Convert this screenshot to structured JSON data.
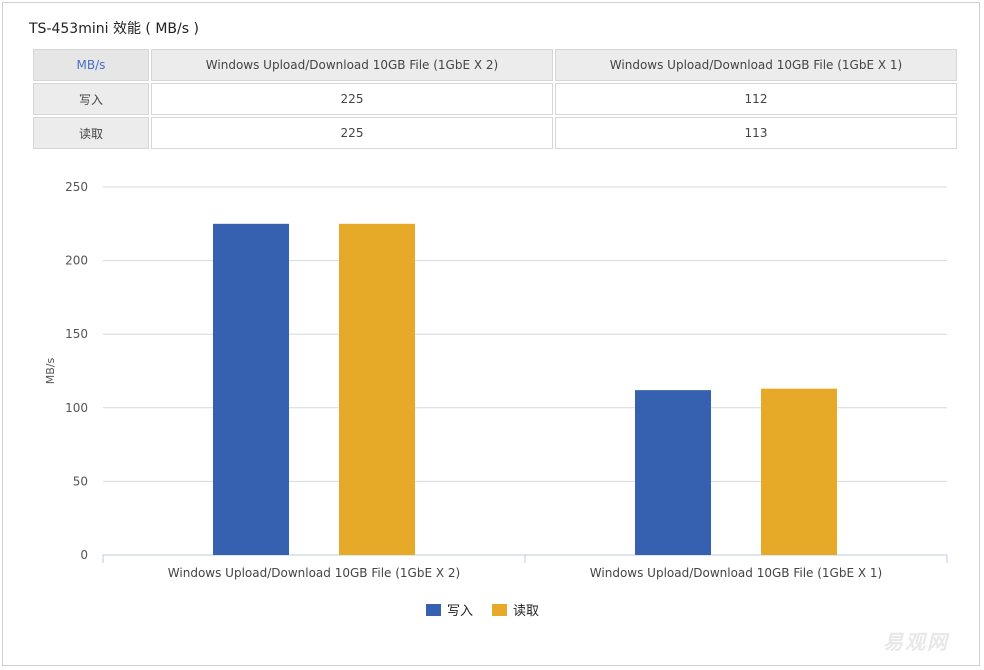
{
  "title": "TS-453mini 效能 ( MB/s )",
  "table": {
    "corner": "MB/s",
    "columns": [
      "Windows Upload/Download 10GB File (1GbE X 2)",
      "Windows Upload/Download 10GB File (1GbE X 1)"
    ],
    "rows": [
      {
        "label": "写入",
        "values": [
          "225",
          "112"
        ]
      },
      {
        "label": "读取",
        "values": [
          "225",
          "113"
        ]
      }
    ]
  },
  "watermark": "易观网",
  "chart_data": {
    "type": "bar",
    "categories": [
      "Windows Upload/Download 10GB File (1GbE X 2)",
      "Windows Upload/Download 10GB File (1GbE X 1)"
    ],
    "series": [
      {
        "name": "写入",
        "values": [
          225,
          112
        ],
        "color": "#3561b0"
      },
      {
        "name": "读取",
        "values": [
          225,
          113
        ],
        "color": "#e6a928"
      }
    ],
    "ylabel": "MB/s",
    "ylim": [
      0,
      250
    ],
    "yticks": [
      0,
      50,
      100,
      150,
      200,
      250
    ],
    "grid": true,
    "legend": "bottom-center"
  }
}
